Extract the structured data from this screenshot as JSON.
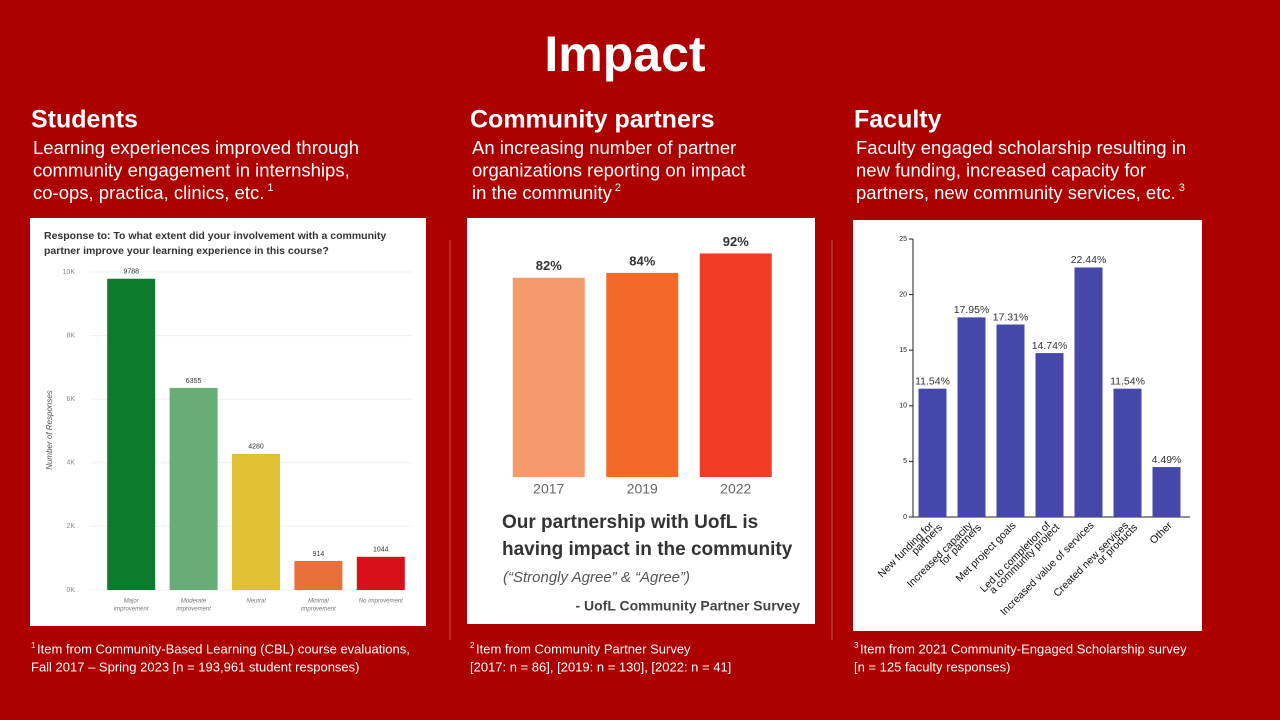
{
  "title": "Impact",
  "columns": [
    {
      "heading": "Students",
      "description": [
        "Learning experiences improved through",
        "community engagement in internships,",
        "co-ops, practica, clinics, etc."
      ],
      "note_mark": "1",
      "footnote": [
        "Item from Community-Based Learning (CBL) course evaluations,",
        "Fall 2017 – Spring 2023 [n = 193,961 student responses)"
      ]
    },
    {
      "heading": "Community partners",
      "description": [
        "An increasing number of partner",
        "organizations reporting on impact",
        "in the community"
      ],
      "note_mark": "2",
      "footnote": [
        "Item from Community Partner Survey",
        "[2017: n = 86], [2019: n = 130], [2022: n = 41]"
      ]
    },
    {
      "heading": "Faculty",
      "description": [
        "Faculty engaged scholarship resulting in",
        "new funding, increased capacity for",
        "partners, new community services, etc."
      ],
      "note_mark": "3",
      "footnote": [
        "Item from 2021 Community-Engaged Scholarship survey",
        "[n = 125 faculty responses)"
      ]
    }
  ],
  "chart_data": [
    {
      "type": "bar",
      "title": [
        "Response to: To what extent did your involvement with a community",
        "partner improve your learning experience in this course?"
      ],
      "y_label": "Number of Responses",
      "categories": [
        [
          "Major",
          "improvement"
        ],
        [
          "Moderate",
          "improvement"
        ],
        [
          "Neutral"
        ],
        [
          "Minimal",
          "improvement"
        ],
        [
          "No improvement"
        ]
      ],
      "values": [
        9788,
        6355,
        4280,
        914,
        1044
      ],
      "colors": [
        "#0b7a2c",
        "#68ac78",
        "#e2c232",
        "#e8703a",
        "#d8101a"
      ],
      "ylim": [
        0,
        10000
      ],
      "yticks": [
        {
          "value": 0,
          "label": "0K"
        },
        {
          "value": 2000,
          "label": "2K"
        },
        {
          "value": 4000,
          "label": "4K"
        },
        {
          "value": 6000,
          "label": "6K"
        },
        {
          "value": 8000,
          "label": "8K"
        },
        {
          "value": 10000,
          "label": "10K"
        }
      ],
      "grid": true
    },
    {
      "type": "bar",
      "categories": [
        [
          "2017"
        ],
        [
          "2019"
        ],
        [
          "2022"
        ]
      ],
      "values": [
        82,
        84,
        92
      ],
      "value_labels": [
        "82%",
        "84%",
        "92%"
      ],
      "colors": [
        "#f59a6a",
        "#f26a26",
        "#f03c25"
      ],
      "caption": [
        "Our partnership with UofL is",
        "having impact in the community"
      ],
      "caption_note": "(“Strongly Agree” & “Agree”)",
      "source": "- UofL Community Partner Survey"
    },
    {
      "type": "bar",
      "categories": [
        [
          "New funding for",
          "partners"
        ],
        [
          "Increased capacity",
          "for partners"
        ],
        [
          "Met project goals"
        ],
        [
          "Led to completion of",
          "a community project"
        ],
        [
          "Increased value of services"
        ],
        [
          "Created new services",
          "or products"
        ],
        [
          "Other"
        ]
      ],
      "values": [
        11.54,
        17.95,
        17.31,
        14.74,
        22.44,
        11.54,
        4.49
      ],
      "value_labels": [
        "11.54%",
        "17.95%",
        "17.31%",
        "14.74%",
        "22.44%",
        "11.54%",
        "4.49%"
      ],
      "color": "#4548a8",
      "ylim": [
        0,
        25
      ],
      "yticks": [
        0,
        5,
        10,
        15,
        20,
        25
      ],
      "grid": false
    }
  ]
}
